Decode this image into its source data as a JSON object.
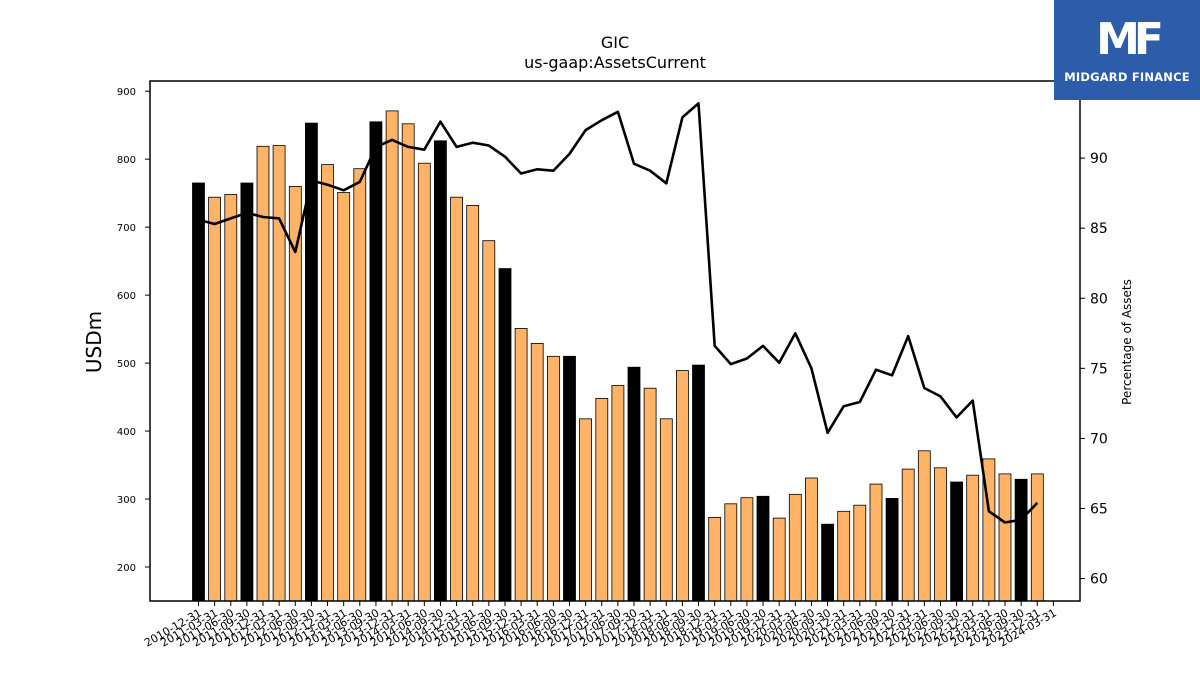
{
  "chart_data": {
    "type": "bar",
    "title": "GIC",
    "subtitle": "us-gaap:AssetsCurrent",
    "ylabel": "USDm",
    "y2label": "Percentage of Assets",
    "ylim": [
      150,
      915
    ],
    "y2lim": [
      58.4,
      95.5
    ],
    "yticks": [
      200,
      300,
      400,
      500,
      600,
      700,
      800,
      900
    ],
    "y2ticks": [
      60,
      65,
      70,
      75,
      80,
      85,
      90
    ],
    "colors": {
      "annual": "#000000",
      "quarter": "#ffb366",
      "line": "#000000"
    },
    "categories": [
      "2010-12-31",
      "2011-03-31",
      "2011-06-30",
      "2011-09-30",
      "2011-12-31",
      "2012-03-31",
      "2012-06-30",
      "2012-09-30",
      "2012-12-31",
      "2013-03-31",
      "2013-06-30",
      "2013-09-30",
      "2013-12-31",
      "2014-03-31",
      "2014-06-30",
      "2014-09-30",
      "2014-12-31",
      "2015-03-31",
      "2015-06-30",
      "2015-09-30",
      "2015-12-31",
      "2016-03-31",
      "2016-06-30",
      "2016-09-30",
      "2016-12-31",
      "2017-03-31",
      "2017-06-30",
      "2017-09-30",
      "2017-12-31",
      "2018-03-31",
      "2018-06-30",
      "2018-09-30",
      "2018-12-31",
      "2019-03-31",
      "2019-06-30",
      "2019-09-30",
      "2019-12-31",
      "2020-03-31",
      "2020-06-30",
      "2020-09-30",
      "2020-12-31",
      "2021-03-31",
      "2021-06-30",
      "2021-09-30",
      "2021-12-31",
      "2022-03-31",
      "2022-06-30",
      "2022-09-30",
      "2022-12-31",
      "2023-03-31",
      "2023-06-30",
      "2023-09-30",
      "2023-12-31",
      "2024-03-31"
    ],
    "annual": [
      true,
      false,
      false,
      true,
      false,
      false,
      false,
      true,
      false,
      false,
      false,
      true,
      false,
      false,
      false,
      true,
      false,
      false,
      false,
      true,
      false,
      false,
      false,
      true,
      false,
      false,
      false,
      true,
      false,
      false,
      false,
      true,
      false,
      false,
      false,
      true,
      false,
      false,
      false,
      true,
      false,
      false,
      false,
      true,
      false,
      false,
      false,
      true,
      false,
      false,
      false,
      true,
      false,
      false
    ],
    "series": [
      {
        "name": "AssetsCurrent",
        "values": [
          765,
          744,
          748,
          765,
          819,
          820,
          760,
          853,
          792,
          751,
          786,
          855,
          871,
          852,
          794,
          827,
          744,
          732,
          680,
          639,
          551,
          529,
          510,
          510,
          418,
          448,
          467,
          494,
          463,
          418,
          489,
          497,
          273,
          293,
          302,
          304,
          272,
          307,
          331,
          263,
          282,
          291,
          322,
          301,
          344,
          371,
          346,
          325,
          335,
          359,
          337,
          329,
          337,
          null
        ]
      },
      {
        "name": "Percentage of Assets",
        "values": [
          85.6,
          85.3,
          85.7,
          86.1,
          85.8,
          85.7,
          83.3,
          88.4,
          88.1,
          87.7,
          88.3,
          90.8,
          91.3,
          90.8,
          90.6,
          92.6,
          90.8,
          91.1,
          90.9,
          90.1,
          88.9,
          89.2,
          89.1,
          90.3,
          92.0,
          92.7,
          93.3,
          89.6,
          89.1,
          88.2,
          92.9,
          93.9,
          76.6,
          75.3,
          75.7,
          76.6,
          75.4,
          77.5,
          75.0,
          70.4,
          72.3,
          72.6,
          74.9,
          74.5,
          77.3,
          73.6,
          73.0,
          71.5,
          72.7,
          64.8,
          64.0,
          64.2,
          65.4,
          null
        ]
      }
    ]
  },
  "logo": {
    "mark": "MF",
    "name": "MIDGARD FINANCE"
  }
}
